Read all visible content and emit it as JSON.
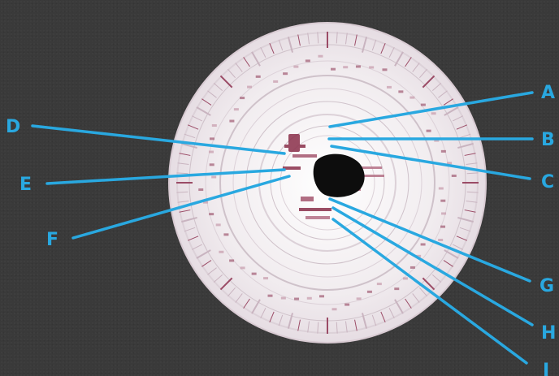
{
  "diagram": {
    "labels": {
      "A": "A",
      "B": "B",
      "C": "C",
      "D": "D",
      "E": "E",
      "F": "F",
      "G": "G",
      "H": "H",
      "I": "I"
    }
  },
  "colors": {
    "background": "#3a3a3a",
    "disc": "#f3eef1",
    "ring": "#d8cdd5",
    "trace": "#8a2f4a",
    "callout": "#29a8e0"
  }
}
